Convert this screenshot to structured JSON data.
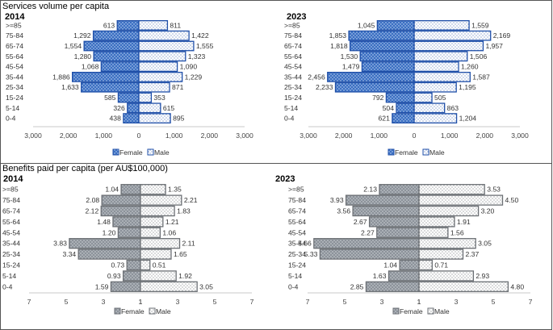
{
  "top_title": "Services volume per capita",
  "bottom_title": "Benefits paid per capita (per AU$100,000)",
  "colors": {
    "services_female_fill": "#3b6fc2",
    "services_male_fill": "#ffffff",
    "services_edge": "#1f4fa8",
    "benefits_female_fill": "#8c929a",
    "benefits_male_fill": "#ffffff",
    "benefits_edge": "#6b6f74"
  },
  "chart_data": [
    {
      "id": "services-2014",
      "type": "bar",
      "orientation": "population-pyramid",
      "title": "2014",
      "categories": [
        ">=85",
        "75-84",
        "65-74",
        "55-64",
        "45-54",
        "35-44",
        "25-34",
        "15-24",
        "5-14",
        "0-4"
      ],
      "series": [
        {
          "name": "Female",
          "values": [
            613,
            1292,
            1554,
            1280,
            1068,
            1886,
            1633,
            585,
            326,
            438
          ],
          "labels": [
            "613",
            "1,292",
            "1,554",
            "1,280",
            "1,068",
            "1,886",
            "1,633",
            "585",
            "326",
            "438"
          ]
        },
        {
          "name": "Male",
          "values": [
            811,
            1422,
            1555,
            1323,
            1090,
            1229,
            871,
            353,
            615,
            895
          ],
          "labels": [
            "811",
            "1,422",
            "1,555",
            "1,323",
            "1,090",
            "1,229",
            "871",
            "353",
            "615",
            "895"
          ]
        }
      ],
      "xlim": [
        -3000,
        3000
      ],
      "x_ticks": [
        "3,000",
        "2,000",
        "1,000",
        "0",
        "1,000",
        "2,000",
        "3,000"
      ],
      "legend": [
        "Female",
        "Male"
      ]
    },
    {
      "id": "services-2023",
      "type": "bar",
      "orientation": "population-pyramid",
      "title": "2023",
      "categories": [
        ">=85",
        "75-84",
        "65-74",
        "55-64",
        "45-54",
        "35-44",
        "25-34",
        "15-24",
        "5-14",
        "0-4"
      ],
      "series": [
        {
          "name": "Female",
          "values": [
            1045,
            1853,
            1818,
            1530,
            1479,
            2456,
            2233,
            792,
            504,
            621
          ],
          "labels": [
            "1,045",
            "1,853",
            "1,818",
            "1,530",
            "1,479",
            "2,456",
            "2,233",
            "792",
            "504",
            "621"
          ]
        },
        {
          "name": "Male",
          "values": [
            1559,
            2169,
            1957,
            1506,
            1260,
            1587,
            1195,
            505,
            863,
            1204
          ],
          "labels": [
            "1,559",
            "2,169",
            "1,957",
            "1,506",
            "1,260",
            "1,587",
            "1,195",
            "505",
            "863",
            "1,204"
          ]
        }
      ],
      "xlim": [
        -3000,
        3000
      ],
      "x_ticks": [
        "3,000",
        "2,000",
        "1,000",
        "0",
        "1,000",
        "2,000",
        "3,000"
      ],
      "legend": [
        "Female",
        "Male"
      ]
    },
    {
      "id": "benefits-2014",
      "type": "bar",
      "orientation": "population-pyramid",
      "title": "2014",
      "categories": [
        ">=85",
        "75-84",
        "65-74",
        "55-64",
        "45-54",
        "35-44",
        "25-34",
        "15-24",
        "5-14",
        "0-4"
      ],
      "series": [
        {
          "name": "Female",
          "values": [
            1.04,
            2.08,
            2.12,
            1.48,
            1.2,
            3.83,
            3.34,
            0.73,
            0.93,
            1.59
          ],
          "labels": [
            "1.04",
            "2.08",
            "2.12",
            "1.48",
            "1.20",
            "3.83",
            "3.34",
            "0.73",
            "0.93",
            "1.59"
          ]
        },
        {
          "name": "Male",
          "values": [
            1.35,
            2.21,
            1.83,
            1.21,
            1.06,
            2.11,
            1.65,
            0.51,
            1.92,
            3.05
          ],
          "labels": [
            "1.35",
            "2.21",
            "1.83",
            "1.21",
            "1.06",
            "2.11",
            "1.65",
            "0.51",
            "1.92",
            "3.05"
          ]
        }
      ],
      "xlim": [
        -6,
        7
      ],
      "center_tick": 1,
      "x_ticks": [
        "7",
        "5",
        "3",
        "1",
        "1",
        "3",
        "5",
        "7"
      ],
      "legend": [
        "Female",
        "Male"
      ]
    },
    {
      "id": "benefits-2023",
      "type": "bar",
      "orientation": "population-pyramid",
      "title": "2023",
      "categories": [
        ">=85",
        "75-84",
        "65-74",
        "55-64",
        "45-54",
        "35-44",
        "25-34",
        "15-24",
        "5-14",
        "0-4"
      ],
      "series": [
        {
          "name": "Female",
          "values": [
            2.13,
            3.93,
            3.56,
            2.67,
            2.27,
            5.66,
            5.33,
            1.04,
            1.63,
            2.85
          ],
          "labels": [
            "2.13",
            "3.93",
            "3.56",
            "2.67",
            "2.27",
            "5.66",
            "5.33",
            "1.04",
            "1.63",
            "2.85"
          ]
        },
        {
          "name": "Male",
          "values": [
            3.53,
            4.5,
            3.2,
            1.91,
            1.56,
            3.05,
            2.37,
            0.71,
            2.93,
            4.8
          ],
          "labels": [
            "3.53",
            "4.50",
            "3.20",
            "1.91",
            "1.56",
            "3.05",
            "2.37",
            "0.71",
            "2.93",
            "4.80"
          ]
        }
      ],
      "xlim": [
        -6,
        7
      ],
      "center_tick": 1,
      "x_ticks": [
        "7",
        "5",
        "3",
        "1",
        "1",
        "3",
        "5",
        "7"
      ],
      "legend": [
        "Female",
        "Male"
      ]
    }
  ]
}
